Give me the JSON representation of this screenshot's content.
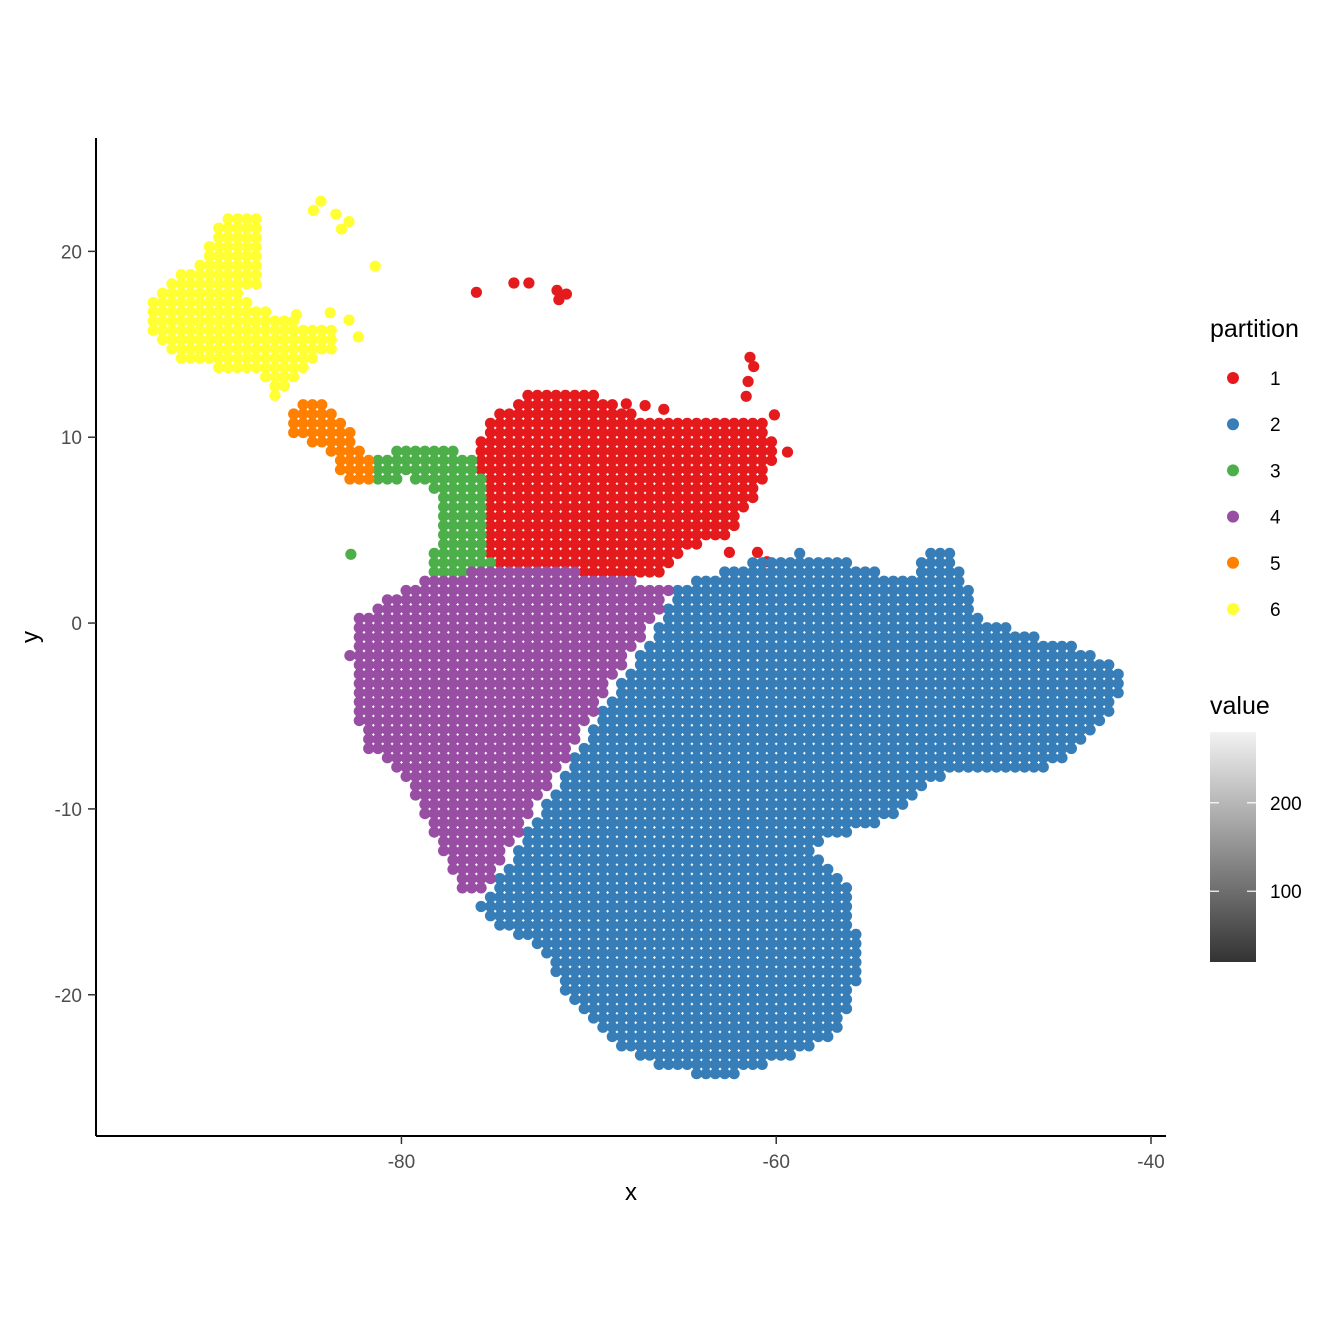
{
  "chart_data": {
    "type": "scatter",
    "title": "",
    "xlabel": "x",
    "ylabel": "y",
    "xlim": [
      -96.3,
      -39.2
    ],
    "ylim": [
      -27.6,
      26.1
    ],
    "x_ticks": [
      -80,
      -60,
      -40
    ],
    "y_ticks": [
      20,
      10,
      0,
      -10,
      -20
    ],
    "x_tick_labels": [
      "-80",
      "-60",
      "-40"
    ],
    "y_tick_labels": [
      "20",
      "10",
      "0",
      "-10",
      "-20"
    ],
    "grid": false,
    "point_spacing": 0.5,
    "legend": {
      "position": "right",
      "partition": {
        "title": "partition",
        "entries": [
          {
            "label": "1",
            "color": "#e41a1c"
          },
          {
            "label": "2",
            "color": "#377eb8"
          },
          {
            "label": "3",
            "color": "#4daf4a"
          },
          {
            "label": "4",
            "color": "#984ea3"
          },
          {
            "label": "5",
            "color": "#ff7f00"
          },
          {
            "label": "6",
            "color": "#ffff33"
          }
        ]
      },
      "value": {
        "title": "value",
        "range": [
          20,
          280
        ],
        "ticks": [
          100,
          200
        ],
        "tick_labels": [
          "100",
          "200"
        ],
        "colors": [
          "#333333",
          "#f2f2f2"
        ]
      }
    },
    "series": [
      {
        "partition": "1",
        "color": "#e41a1c",
        "region": [
          [
            -75.5,
            10.8
          ],
          [
            -73.5,
            12.3
          ],
          [
            -71.5,
            12.5
          ],
          [
            -69.5,
            12.3
          ],
          [
            -67.5,
            11.2
          ],
          [
            -65,
            11
          ],
          [
            -62,
            11
          ],
          [
            -60.5,
            11
          ],
          [
            -60,
            8.8
          ],
          [
            -61,
            7
          ],
          [
            -62,
            5.5
          ],
          [
            -62.5,
            4.8
          ],
          [
            -65.5,
            3.5
          ],
          [
            -66.5,
            2.3
          ],
          [
            -69,
            2.2
          ],
          [
            -72,
            2.6
          ],
          [
            -74,
            2.9
          ],
          [
            -75,
            3
          ],
          [
            -75.6,
            4.5
          ],
          [
            -75.3,
            6
          ],
          [
            -75.8,
            8
          ],
          [
            -76,
            9.5
          ]
        ],
        "extra_points": [
          [
            -76,
            17.8
          ],
          [
            -74,
            18.3
          ],
          [
            -73.2,
            18.3
          ],
          [
            -71.6,
            17.4
          ],
          [
            -71.2,
            17.7
          ],
          [
            -71.7,
            17.9
          ],
          [
            -61.4,
            14.3
          ],
          [
            -61.2,
            13.8
          ],
          [
            -61.5,
            13
          ],
          [
            -61.6,
            12.2
          ],
          [
            -60.1,
            11.2
          ],
          [
            -59.4,
            9.2
          ],
          [
            -66,
            11.5
          ],
          [
            -67,
            11.7
          ],
          [
            -68,
            11.8
          ],
          [
            -62.5,
            3.8
          ],
          [
            -61,
            3.8
          ],
          [
            -60.5,
            3.3
          ]
        ]
      },
      {
        "partition": "2",
        "color": "#377eb8",
        "region": [
          [
            -65.3,
            2
          ],
          [
            -62.5,
            3
          ],
          [
            -58.5,
            3.8
          ],
          [
            -55.5,
            3.2
          ],
          [
            -53,
            2.2
          ],
          [
            -52.2,
            3.5
          ],
          [
            -51,
            4.2
          ],
          [
            -49.6,
            2
          ],
          [
            -49.2,
            0.2
          ],
          [
            -46,
            -0.7
          ],
          [
            -44,
            -1.3
          ],
          [
            -41.2,
            -2.8
          ],
          [
            -42,
            -4.8
          ],
          [
            -43.5,
            -6.5
          ],
          [
            -45.5,
            -7.8
          ],
          [
            -48,
            -8.2
          ],
          [
            -50.5,
            -8.1
          ],
          [
            -52.5,
            -9
          ],
          [
            -53.6,
            -10.5
          ],
          [
            -56.6,
            -11.4
          ],
          [
            -58.3,
            -12
          ],
          [
            -56.3,
            -14
          ],
          [
            -55.6,
            -17
          ],
          [
            -55.8,
            -20.5
          ],
          [
            -57,
            -22.2
          ],
          [
            -58.5,
            -23
          ],
          [
            -61,
            -24
          ],
          [
            -63,
            -24.6
          ],
          [
            -64.5,
            -24.3
          ],
          [
            -66.5,
            -23.8
          ],
          [
            -69.5,
            -22
          ],
          [
            -71.4,
            -20
          ],
          [
            -72.5,
            -17.5
          ],
          [
            -74.5,
            -16.5
          ],
          [
            -75.8,
            -15.3
          ],
          [
            -74.5,
            -13.2
          ],
          [
            -72.5,
            -10
          ],
          [
            -70.5,
            -6.8
          ],
          [
            -68.5,
            -3.5
          ],
          [
            -66.5,
            -0.5
          ]
        ]
      },
      {
        "partition": "3",
        "color": "#4daf4a",
        "region": [
          [
            -81.8,
            7.3
          ],
          [
            -81.5,
            9
          ],
          [
            -79.5,
            9.6
          ],
          [
            -78.3,
            9.6
          ],
          [
            -76.6,
            9.2
          ],
          [
            -76,
            9
          ],
          [
            -75.6,
            7.5
          ],
          [
            -75.3,
            6
          ],
          [
            -75.6,
            4
          ],
          [
            -75,
            2.8
          ],
          [
            -76.5,
            2.5
          ],
          [
            -78.6,
            2.3
          ],
          [
            -78.4,
            3.5
          ],
          [
            -77.8,
            5
          ],
          [
            -78,
            6.5
          ],
          [
            -78.6,
            7.5
          ],
          [
            -79.6,
            7.8
          ],
          [
            -80.5,
            7.5
          ]
        ],
        "extra_points": [
          [
            -82.7,
            3.7
          ]
        ]
      },
      {
        "partition": "4",
        "color": "#984ea3",
        "region": [
          [
            -78.8,
            2.3
          ],
          [
            -75,
            3
          ],
          [
            -71,
            2.8
          ],
          [
            -67,
            2.2
          ],
          [
            -65.3,
            2
          ],
          [
            -66.8,
            -0.3
          ],
          [
            -68.8,
            -3.3
          ],
          [
            -70.8,
            -6.6
          ],
          [
            -72.8,
            -9.8
          ],
          [
            -74.7,
            -13
          ],
          [
            -75.5,
            -14.8
          ],
          [
            -77,
            -14.2
          ],
          [
            -78.5,
            -11
          ],
          [
            -80.1,
            -8
          ],
          [
            -82,
            -6.6
          ],
          [
            -82.6,
            -4.2
          ],
          [
            -82.2,
            -2.5
          ],
          [
            -82.8,
            -1.8
          ],
          [
            -82.4,
            0.2
          ],
          [
            -80.6,
            1.5
          ]
        ]
      },
      {
        "partition": "5",
        "color": "#ff7f00",
        "region": [
          [
            -86.2,
            10.5
          ],
          [
            -85.7,
            11.6
          ],
          [
            -84.4,
            12.3
          ],
          [
            -83.7,
            11.5
          ],
          [
            -82.8,
            10.6
          ],
          [
            -82.3,
            9.7
          ],
          [
            -81.5,
            8.8
          ],
          [
            -81.5,
            7.3
          ],
          [
            -82.6,
            7.5
          ],
          [
            -83.3,
            8.3
          ],
          [
            -84.2,
            9.3
          ],
          [
            -85.3,
            9.8
          ]
        ]
      },
      {
        "partition": "6",
        "color": "#ffff33",
        "region": [
          [
            -92.3,
            18.7
          ],
          [
            -90.8,
            19.3
          ],
          [
            -89.6,
            21.8
          ],
          [
            -87.5,
            21.8
          ],
          [
            -87.5,
            18.4
          ],
          [
            -88.6,
            17.5
          ],
          [
            -86.5,
            16.5
          ],
          [
            -84,
            16
          ],
          [
            -83.5,
            15.8
          ],
          [
            -83.2,
            14.8
          ],
          [
            -84.5,
            14.2
          ],
          [
            -85.7,
            13
          ],
          [
            -86.8,
            12.2
          ],
          [
            -87.6,
            13.5
          ],
          [
            -89.5,
            13.6
          ],
          [
            -91.8,
            14.2
          ],
          [
            -93.3,
            15.3
          ],
          [
            -93.3,
            17.5
          ]
        ],
        "extra_points": [
          [
            -84.3,
            22.7
          ],
          [
            -84.7,
            22.2
          ],
          [
            -83.5,
            22
          ],
          [
            -82.8,
            21.6
          ],
          [
            -83.2,
            21.2
          ],
          [
            -81.4,
            19.2
          ],
          [
            -83.8,
            16.7
          ],
          [
            -82.8,
            16.3
          ],
          [
            -82.3,
            15.4
          ],
          [
            -86.2,
            16.2
          ],
          [
            -85.6,
            16.6
          ]
        ]
      }
    ]
  }
}
